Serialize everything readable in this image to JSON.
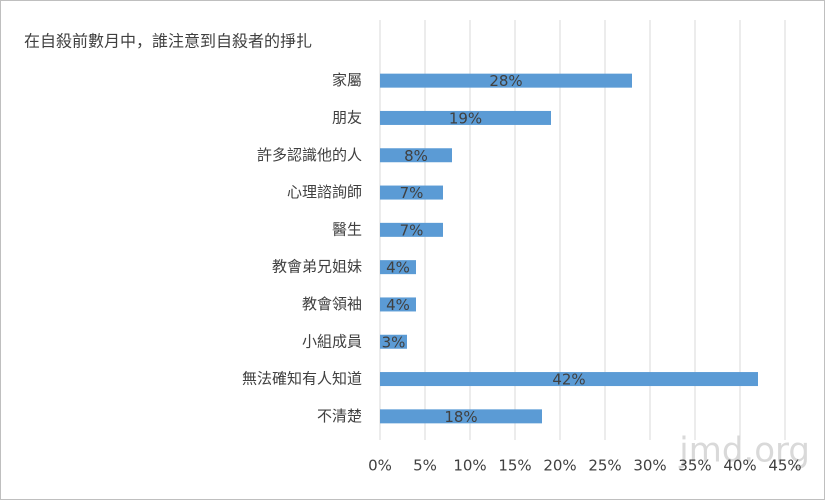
{
  "chart_data": {
    "type": "hbar",
    "title": "在自殺前數月中，誰注意到自殺者的掙扎",
    "categories": [
      "家屬",
      "朋友",
      "許多認識他的人",
      "心理諮詢師",
      "醫生",
      "教會弟兄姐妹",
      "教會領袖",
      "小組成員",
      "無法確知有人知道",
      "不清楚"
    ],
    "values": [
      28,
      19,
      8,
      7,
      7,
      4,
      4,
      3,
      42,
      18
    ],
    "value_labels": [
      "28%",
      "19%",
      "8%",
      "7%",
      "7%",
      "4%",
      "4%",
      "3%",
      "42%",
      "18%"
    ],
    "color": "#5b9bd5",
    "xlim": [
      0,
      45
    ],
    "xticks": [
      {
        "value": 0,
        "label": "0%"
      },
      {
        "value": 5,
        "label": "5%"
      },
      {
        "value": 10,
        "label": "10%"
      },
      {
        "value": 15,
        "label": "15%"
      },
      {
        "value": 20,
        "label": "20%"
      },
      {
        "value": 25,
        "label": "25%"
      },
      {
        "value": 30,
        "label": "30%"
      },
      {
        "value": 35,
        "label": "35%"
      },
      {
        "value": 40,
        "label": "40%"
      },
      {
        "value": 45,
        "label": "45%"
      }
    ],
    "grid": true,
    "watermark": "jmd.org"
  }
}
